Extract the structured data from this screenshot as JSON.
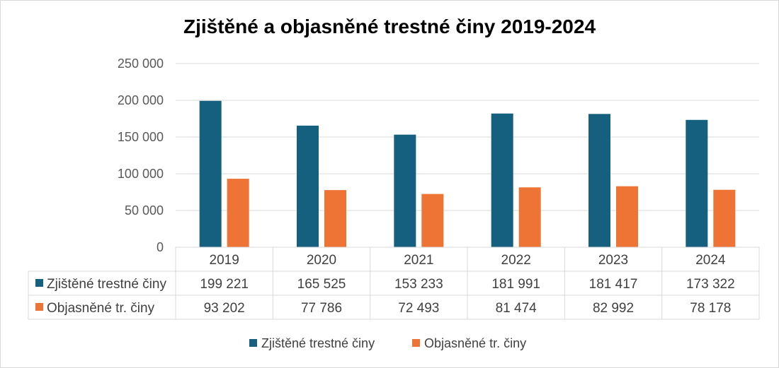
{
  "chart_data": {
    "type": "bar",
    "title": "Zjištěné a objasněné trestné činy 2019-2024",
    "categories": [
      "2019",
      "2020",
      "2021",
      "2022",
      "2023",
      "2024"
    ],
    "series": [
      {
        "name": "Zjištěné trestné činy",
        "color": "#15607f",
        "values": [
          199221,
          165525,
          153233,
          181991,
          181417,
          173322
        ],
        "labels": [
          "199 221",
          "165 525",
          "153 233",
          "181 991",
          "181 417",
          "173 322"
        ]
      },
      {
        "name": "Objasněné tr. činy",
        "color": "#ed7435",
        "values": [
          93202,
          77786,
          72493,
          81474,
          82992,
          78178
        ],
        "labels": [
          "93 202",
          "77 786",
          "72 493",
          "81 474",
          "82 992",
          "78 178"
        ]
      }
    ],
    "ylim": [
      0,
      250000
    ],
    "yticks": [
      0,
      50000,
      100000,
      150000,
      200000,
      250000
    ],
    "ytick_labels": [
      "0",
      "50 000",
      "100 000",
      "150 000",
      "200 000",
      "250 000"
    ],
    "grid": true,
    "data_table": true,
    "legend": "bottom"
  }
}
